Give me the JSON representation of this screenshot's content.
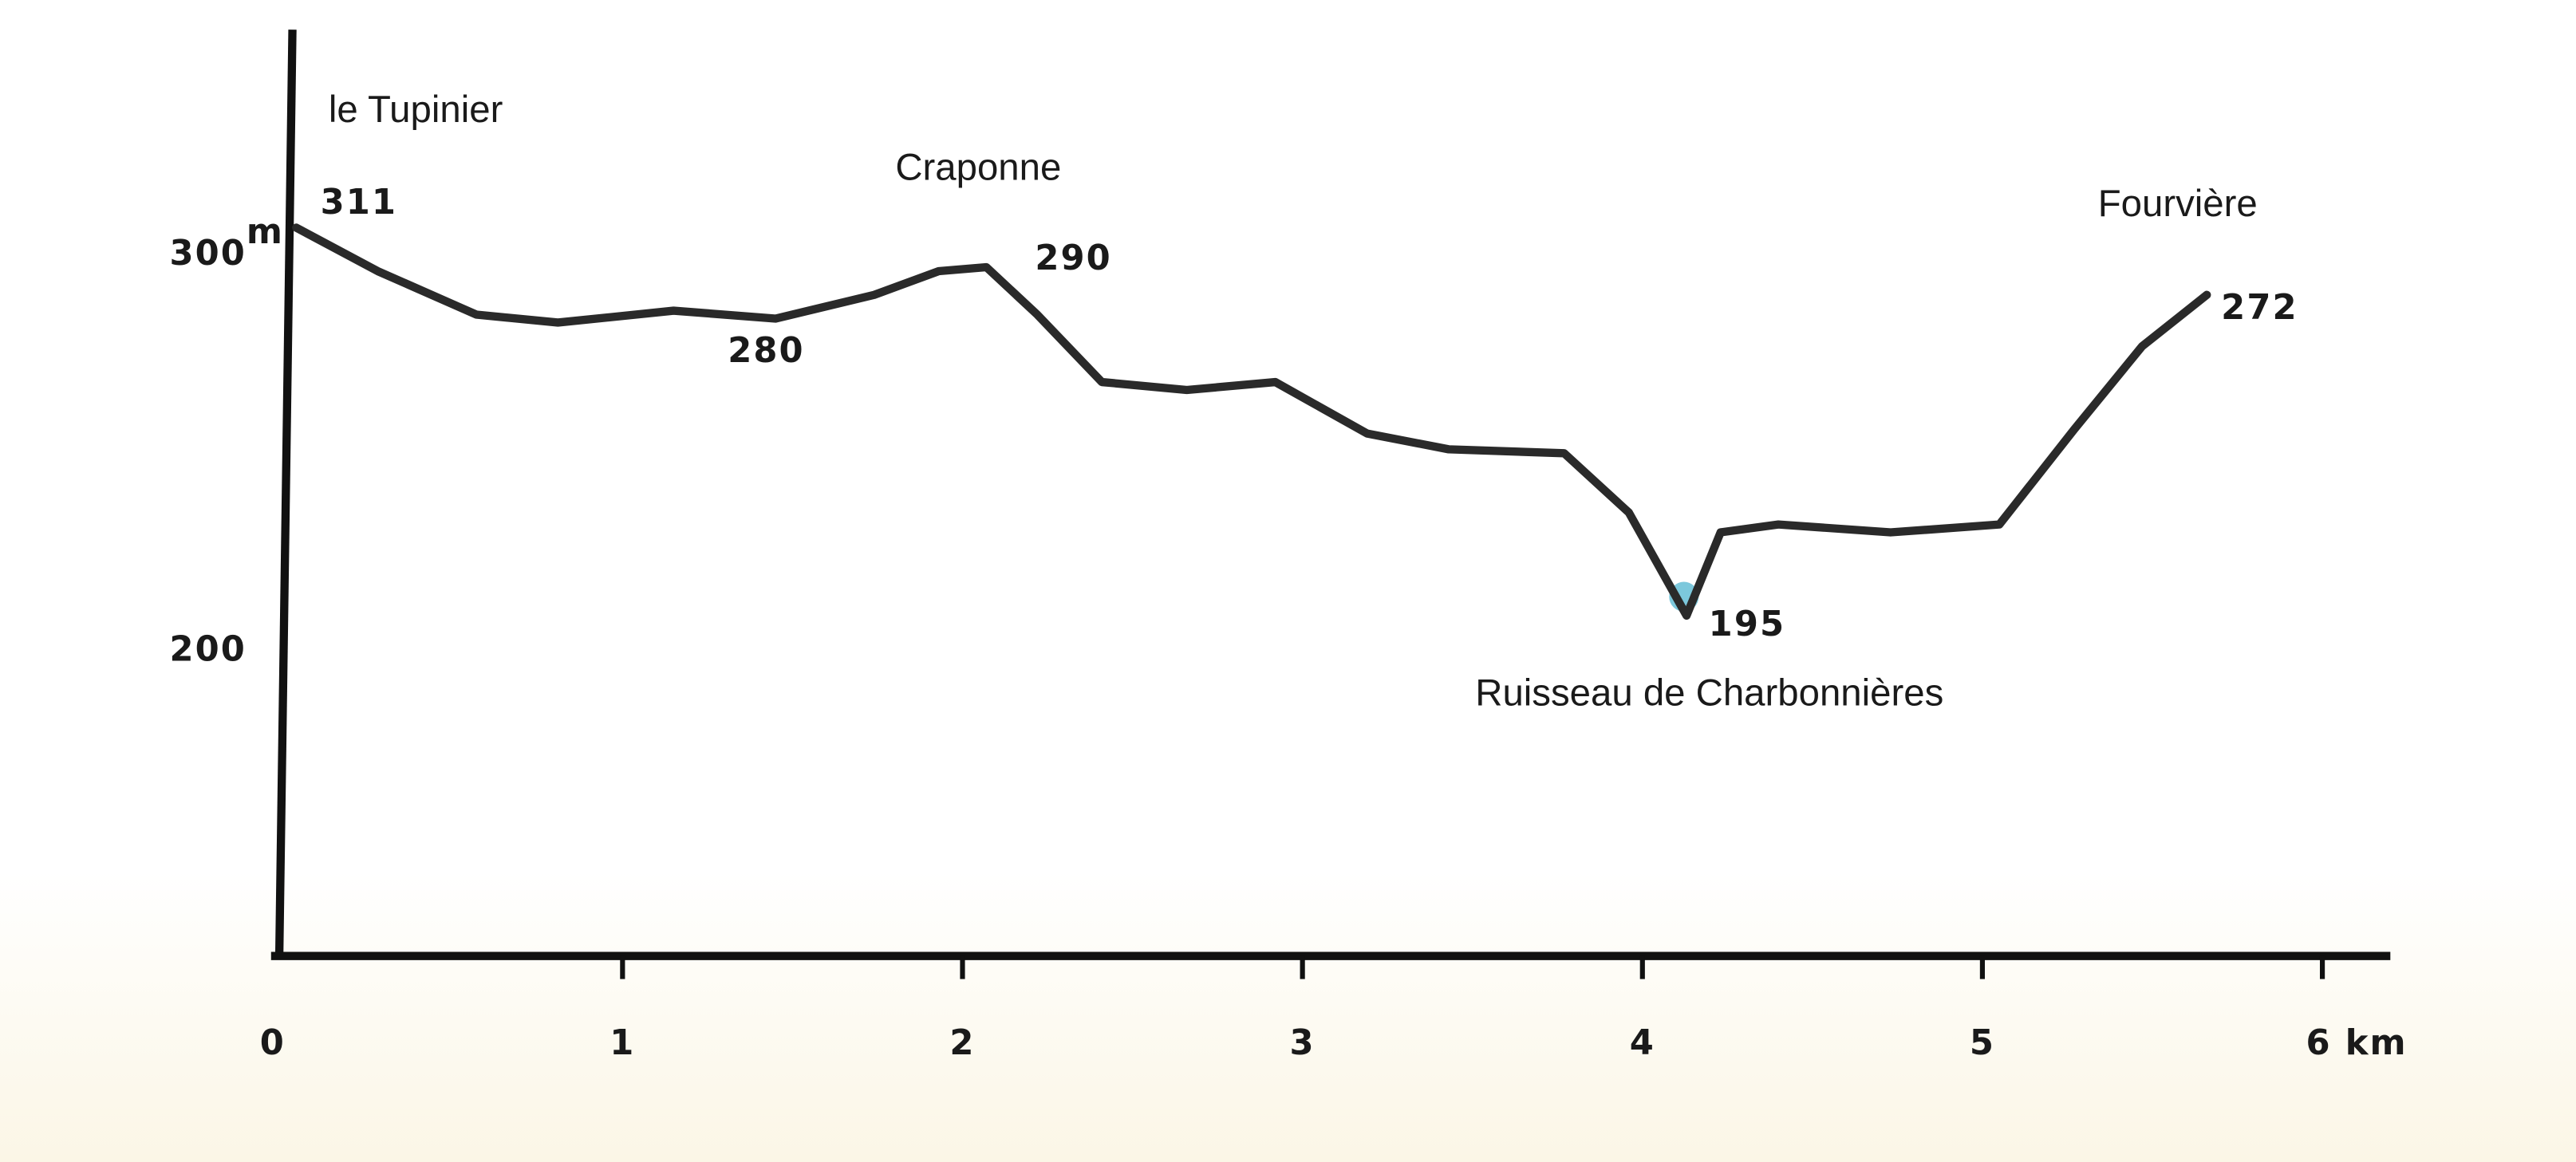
{
  "chart_data": {
    "type": "line",
    "x": [
      0.04,
      0.28,
      0.57,
      0.81,
      1.15,
      1.45,
      1.74,
      1.93,
      2.07,
      2.22,
      2.41,
      2.66,
      2.92,
      3.19,
      3.43,
      3.77,
      3.96,
      4.13,
      4.23,
      4.4,
      4.73,
      5.05,
      5.27,
      5.47,
      5.66
    ],
    "values": [
      305,
      294,
      283,
      281,
      284,
      282,
      288,
      294,
      295,
      283,
      266,
      264,
      266,
      253,
      249,
      248,
      233,
      207,
      228,
      230,
      228,
      230,
      254,
      275,
      288
    ],
    "color": "#2a2a2a",
    "xlim": [
      0,
      6.2
    ],
    "xticks": [
      0,
      1,
      2,
      3,
      4,
      5,
      {
        "value": 6,
        "label": "6 km"
      }
    ],
    "ylim": [
      121,
      355
    ],
    "yticks": [
      200,
      300
    ],
    "y_unit": "m",
    "annotations": [
      "le Tupinier",
      "311",
      "Craponne",
      "290",
      "280",
      "Ruisseau de Charbonnières",
      "195",
      "Fourvière",
      "272"
    ]
  }
}
